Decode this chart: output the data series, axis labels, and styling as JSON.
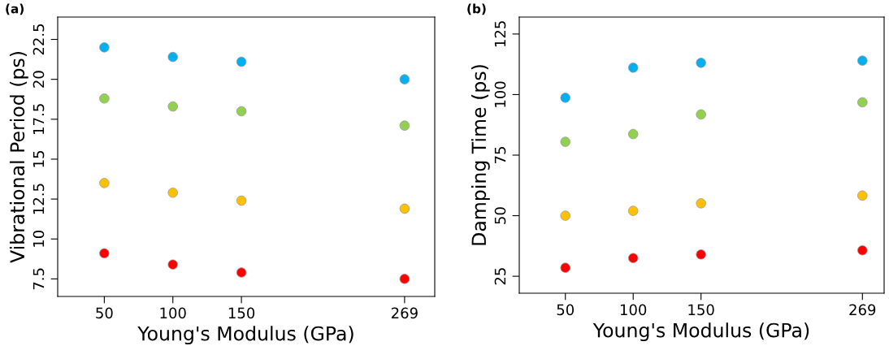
{
  "chart_data": [
    {
      "type": "scatter",
      "title": "(a)",
      "xlabel": "Young's Modulus (GPa)",
      "ylabel": "Vibrational Period (ps)",
      "x": [
        50,
        100,
        150,
        269
      ],
      "xlim": [
        16,
        291
      ],
      "xticks": [
        50,
        100,
        150,
        269
      ],
      "ylim": [
        6.4,
        23.9
      ],
      "yticks": [
        7.5,
        10,
        12.5,
        15,
        17.5,
        20,
        22.5
      ],
      "marker": "circle",
      "grid": false,
      "legend": false,
      "series": [
        {
          "color": "#00b0f0",
          "values": [
            22.0,
            21.4,
            21.1,
            20.0
          ]
        },
        {
          "color": "#92d050",
          "values": [
            18.8,
            18.3,
            18.0,
            17.1
          ]
        },
        {
          "color": "#ffc000",
          "values": [
            13.5,
            12.9,
            12.4,
            11.9
          ]
        },
        {
          "color": "#ff0000",
          "values": [
            9.1,
            8.4,
            7.9,
            7.5
          ]
        }
      ]
    },
    {
      "type": "scatter",
      "title": "(b)",
      "xlabel": "Young's Modulus (GPa)",
      "ylabel": "Damping Time (ps)",
      "x": [
        50,
        100,
        150,
        269
      ],
      "xlim": [
        16,
        285
      ],
      "xticks": [
        50,
        100,
        150,
        269
      ],
      "ylim": [
        18,
        132
      ],
      "yticks": [
        25,
        50,
        75,
        100,
        125
      ],
      "marker": "circle",
      "grid": false,
      "legend": false,
      "series": [
        {
          "color": "#00b0f0",
          "values": [
            98.7,
            111.1,
            113.1,
            114.0
          ]
        },
        {
          "color": "#92d050",
          "values": [
            80.5,
            83.7,
            91.8,
            96.8
          ]
        },
        {
          "color": "#ffc000",
          "values": [
            50,
            52,
            55.1,
            58.3
          ]
        },
        {
          "color": "#ff0000",
          "values": [
            28.5,
            32.5,
            34.0,
            35.7
          ]
        }
      ]
    }
  ]
}
